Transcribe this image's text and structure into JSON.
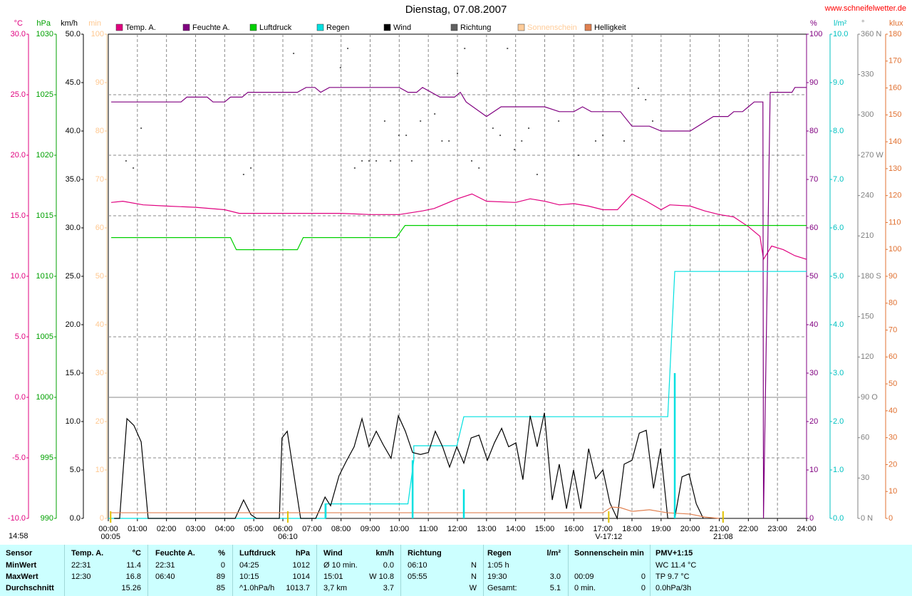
{
  "chart_data": {
    "type": "line",
    "title": "Dienstag, 07.08.2007",
    "source": "www.schneifelwetter.de",
    "xlim": [
      0,
      24
    ],
    "xticks": [
      {
        "value": 0,
        "label": "00:00"
      },
      {
        "value": 1,
        "label": "01:00"
      },
      {
        "value": 2,
        "label": "02:00"
      },
      {
        "value": 3,
        "label": "03:00"
      },
      {
        "value": 4,
        "label": "04:00"
      },
      {
        "value": 5,
        "label": "05:00"
      },
      {
        "value": 6,
        "label": "06:00"
      },
      {
        "value": 7,
        "label": "07:00"
      },
      {
        "value": 8,
        "label": "08:00"
      },
      {
        "value": 9,
        "label": "09:00"
      },
      {
        "value": 10,
        "label": "10:00"
      },
      {
        "value": 11,
        "label": "11:00"
      },
      {
        "value": 12,
        "label": "12:00"
      },
      {
        "value": 13,
        "label": "13:00"
      },
      {
        "value": 14,
        "label": "14:00"
      },
      {
        "value": 15,
        "label": "15:00"
      },
      {
        "value": 16,
        "label": "16:00"
      },
      {
        "value": 17,
        "label": "17:00"
      },
      {
        "value": 18,
        "label": "18:00"
      },
      {
        "value": 19,
        "label": "19:00"
      },
      {
        "value": 20,
        "label": "20:00"
      },
      {
        "value": 21,
        "label": "21:00"
      },
      {
        "value": 22,
        "label": "22:00"
      },
      {
        "value": 23,
        "label": "23:00"
      },
      {
        "value": 24,
        "label": "24:00"
      }
    ],
    "grid": true,
    "axes": [
      {
        "label": "°C",
        "side": "left",
        "color": "#e0007f",
        "lim": [
          -10,
          30
        ],
        "ticks": [
          {
            "value": -10,
            "label": "-10.0"
          },
          {
            "value": -5,
            "label": "-5.0"
          },
          {
            "value": 0,
            "label": "0.0"
          },
          {
            "value": 5,
            "label": "5.0"
          },
          {
            "value": 10,
            "label": "10.0"
          },
          {
            "value": 15,
            "label": "15.0"
          },
          {
            "value": 20,
            "label": "20.0"
          },
          {
            "value": 25,
            "label": "25.0"
          },
          {
            "value": 30,
            "label": "30.0"
          }
        ]
      },
      {
        "label": "hPa",
        "side": "left",
        "color": "#00a000",
        "lim": [
          990,
          1030
        ],
        "ticks": [
          990,
          995,
          1000,
          1005,
          1010,
          1015,
          1020,
          1025,
          1030
        ]
      },
      {
        "label": "km/h",
        "side": "left",
        "color": "#000000",
        "lim": [
          0,
          50
        ],
        "ticks": [
          {
            "value": 0,
            "label": "0.0"
          },
          {
            "value": 5,
            "label": "5.0"
          },
          {
            "value": 10,
            "label": "10.0"
          },
          {
            "value": 15,
            "label": "15.0"
          },
          {
            "value": 20,
            "label": "20.0"
          },
          {
            "value": 25,
            "label": "25.0"
          },
          {
            "value": 30,
            "label": "30.0"
          },
          {
            "value": 35,
            "label": "35.0"
          },
          {
            "value": 40,
            "label": "40.0"
          },
          {
            "value": 45,
            "label": "45.0"
          },
          {
            "value": 50,
            "label": "50.0"
          }
        ]
      },
      {
        "label": "min",
        "side": "left",
        "color": "#ffc890",
        "lim": [
          0,
          100
        ],
        "ticks": [
          0,
          10,
          20,
          30,
          40,
          50,
          60,
          70,
          80,
          90,
          100
        ]
      },
      {
        "label": "%",
        "side": "right",
        "color": "#800080",
        "lim": [
          0,
          100
        ],
        "ticks": [
          0,
          10,
          20,
          30,
          40,
          50,
          60,
          70,
          80,
          90,
          100
        ]
      },
      {
        "label": "l/m²",
        "side": "right",
        "color": "#00c0c0",
        "lim": [
          0,
          10
        ],
        "ticks": [
          {
            "value": 0,
            "label": "0.0"
          },
          {
            "value": 1,
            "label": "1.0"
          },
          {
            "value": 2,
            "label": "2.0"
          },
          {
            "value": 3,
            "label": "3.0"
          },
          {
            "value": 4,
            "label": "4.0"
          },
          {
            "value": 5,
            "label": "5.0"
          },
          {
            "value": 6,
            "label": "6.0"
          },
          {
            "value": 7,
            "label": "7.0"
          },
          {
            "value": 8,
            "label": "8.0"
          },
          {
            "value": 9,
            "label": "9.0"
          },
          {
            "value": 10,
            "label": "10.0"
          }
        ]
      },
      {
        "label": "°",
        "side": "right",
        "color": "#808080",
        "lim": [
          0,
          360
        ],
        "grid": [
          45,
          90,
          135,
          225,
          270,
          315
        ],
        "ticks": [
          {
            "value": 0,
            "label": "0   N"
          },
          30,
          60,
          {
            "value": 90,
            "label": "90  O"
          },
          120,
          150,
          {
            "value": 180,
            "label": "180 S"
          },
          210,
          240,
          {
            "value": 270,
            "label": "270 W"
          },
          300,
          330,
          {
            "value": 360,
            "label": "360 N"
          }
        ]
      },
      {
        "label": "klux",
        "side": "right",
        "color": "#e07030",
        "lim": [
          0,
          180
        ],
        "ticks": [
          0,
          10,
          20,
          30,
          40,
          50,
          60,
          70,
          80,
          90,
          100,
          110,
          120,
          130,
          140,
          150,
          160,
          170,
          180
        ]
      }
    ],
    "series": [
      {
        "name": "Temp. A.",
        "color": "#e0007f",
        "axis": 0,
        "type": "line",
        "x": [
          0.1,
          0.5,
          1.2,
          2.0,
          3.0,
          4.0,
          4.5,
          6.0,
          7.0,
          8.0,
          9.0,
          10.0,
          10.8,
          11.2,
          12.0,
          12.5,
          13.0,
          14.0,
          14.5,
          15.0,
          15.5,
          16.0,
          16.5,
          17.0,
          17.5,
          18.0,
          18.5,
          19.0,
          19.3,
          20.0,
          20.5,
          21.0,
          21.5,
          22.0,
          22.4,
          22.52,
          22.8,
          23.2,
          23.6,
          24.0
        ],
        "values": [
          16.1,
          16.2,
          15.9,
          15.8,
          15.7,
          15.5,
          15.2,
          15.2,
          15.2,
          15.2,
          15.1,
          15.1,
          15.4,
          15.6,
          16.4,
          16.8,
          16.2,
          16.1,
          16.4,
          16.2,
          15.9,
          16.0,
          15.8,
          15.5,
          15.5,
          16.8,
          16.2,
          15.5,
          15.9,
          15.8,
          15.4,
          15.1,
          14.9,
          14.1,
          13.3,
          11.4,
          12.5,
          12.2,
          11.7,
          11.4
        ]
      },
      {
        "name": "Feuchte A.",
        "color": "#800080",
        "axis": 4,
        "type": "line",
        "x": [
          0.1,
          2.5,
          2.7,
          3.4,
          3.6,
          4.0,
          4.2,
          4.6,
          4.8,
          6.5,
          6.8,
          7.1,
          7.3,
          7.6,
          10.0,
          10.3,
          10.6,
          10.8,
          11.4,
          11.9,
          12.1,
          12.3,
          13.0,
          13.5,
          15.0,
          15.5,
          16.0,
          16.3,
          16.6,
          17.6,
          18.0,
          18.6,
          19.0,
          20.0,
          20.8,
          21.3,
          21.5,
          21.8,
          22.0,
          22.2,
          22.5,
          22.52,
          22.75,
          23.5,
          23.6,
          24.0
        ],
        "values": [
          86,
          86,
          87,
          87,
          86,
          86,
          87,
          87,
          88,
          88,
          89,
          89,
          88,
          89,
          89,
          88,
          88,
          89,
          87,
          87,
          88,
          86,
          83,
          85,
          85,
          84,
          84,
          85,
          84,
          84,
          81,
          81,
          80,
          80,
          83,
          83,
          84,
          84,
          85,
          86,
          86,
          0,
          88,
          88,
          89,
          89
        ]
      },
      {
        "name": "Luftdruck",
        "color": "#00d000",
        "axis": 1,
        "type": "line",
        "x": [
          0.1,
          4.2,
          4.4,
          6.5,
          6.7,
          9.9,
          10.2,
          24
        ],
        "values": [
          1013.2,
          1013.2,
          1012.2,
          1012.2,
          1013.2,
          1013.2,
          1014.2,
          1014.2
        ]
      },
      {
        "name": "Regen",
        "color": "#00e0e0",
        "axis": 5,
        "type": "line",
        "x": [
          0,
          7.45,
          7.45,
          10.3,
          10.5,
          10.5,
          11.98,
          12.22,
          19.23,
          19.47,
          24
        ],
        "values": [
          0,
          0,
          0.3,
          0.3,
          1.2,
          1.5,
          1.5,
          2.1,
          2.1,
          5.1,
          5.1
        ]
      },
      {
        "name": "Wind",
        "color": "#000000",
        "axis": 2,
        "type": "line",
        "x": [
          0.2,
          0.39,
          0.64,
          0.88,
          1.13,
          1.37,
          4.36,
          4.65,
          4.9,
          5.09,
          5.88,
          5.97,
          6.15,
          6.39,
          6.61,
          7.13,
          7.45,
          7.64,
          7.93,
          8.18,
          8.45,
          8.72,
          8.96,
          9.21,
          9.45,
          9.72,
          9.97,
          10.21,
          10.46,
          10.73,
          11.0,
          11.24,
          11.49,
          11.73,
          11.98,
          12.22,
          12.47,
          12.74,
          13.03,
          13.27,
          13.52,
          13.76,
          14.01,
          14.25,
          14.5,
          14.74,
          14.99,
          15.26,
          15.5,
          15.75,
          15.99,
          16.24,
          16.51,
          16.75,
          17.0,
          17.24,
          17.49,
          17.73,
          18.0,
          18.25,
          18.49,
          18.74,
          18.98,
          19.23,
          19.47,
          19.72,
          19.96,
          20.21,
          20.45
        ],
        "values": [
          0,
          0,
          10.3,
          9.6,
          7.9,
          0,
          0,
          1.9,
          0.4,
          0,
          0,
          8.3,
          9.0,
          4.3,
          0,
          0,
          2.2,
          1.3,
          4.4,
          5.9,
          7.4,
          10.3,
          7.4,
          9.0,
          7.6,
          6.2,
          10.6,
          9.0,
          6.8,
          6.6,
          6.8,
          9.0,
          7.4,
          5.3,
          7.4,
          5.7,
          8.3,
          8.6,
          6.0,
          7.8,
          9.3,
          7.4,
          7.8,
          4.0,
          10.6,
          7.4,
          10.9,
          1.9,
          5.6,
          1.0,
          5.0,
          1.0,
          7.2,
          4.1,
          5.0,
          1.6,
          0,
          5.6,
          6.0,
          8.8,
          9.1,
          3.1,
          7.2,
          0,
          0,
          4.3,
          4.6,
          1.5,
          0
        ]
      },
      {
        "name": "Richtung",
        "color": "#606060",
        "axis": 6,
        "type": "scatter",
        "x": [
          0.61,
          0.86,
          1.13,
          4.65,
          4.9,
          6.37,
          7.98,
          8.23,
          8.47,
          8.72,
          8.96,
          9.21,
          9.5,
          9.7,
          9.99,
          10.24,
          10.43,
          10.73,
          11.22,
          11.47,
          11.71,
          12.0,
          12.25,
          12.49,
          12.74,
          13.22,
          13.47,
          13.72,
          13.96,
          14.21,
          14.45,
          14.74,
          15.48,
          16.16,
          16.75,
          17.0,
          17.73,
          18.22,
          18.47,
          18.71
        ],
        "values": [
          265.8,
          260.5,
          290.1,
          255.7,
          260.5,
          345.7,
          335.1,
          349.4,
          260.5,
          265.8,
          265.8,
          265.8,
          295.4,
          265.8,
          284.8,
          284.8,
          265.8,
          295.4,
          300.7,
          280.6,
          280.6,
          330.9,
          349.4,
          265.8,
          260.5,
          290.1,
          284.8,
          349.4,
          274.2,
          280.6,
          290.1,
          255.7,
          295.4,
          270.0,
          280.6,
          284.8,
          280.6,
          319.8,
          311.3,
          295.4
        ]
      },
      {
        "name": "Sonnenschein",
        "color": "#ffcc99",
        "axis": 3,
        "type": "line",
        "x": [],
        "values": []
      },
      {
        "name": "Helligkeit",
        "color": "#e08050",
        "axis": 7,
        "type": "line",
        "x": [
          0.1,
          17.0,
          17.3,
          17.6,
          18.0,
          18.6,
          19.2,
          20.0,
          20.5,
          21.0
        ],
        "values": [
          2.1,
          2.1,
          4.2,
          4.0,
          2.6,
          3.2,
          2.1,
          1.6,
          0.5,
          0
        ]
      },
      {
        "color": "#00e0e0",
        "axis": 5,
        "type": "bar",
        "x": [
          7.47,
          10.46,
          12.22,
          19.47
        ],
        "values": [
          0.3,
          1.2,
          0.6,
          3.0
        ]
      }
    ],
    "left_note": "14:58",
    "annotations": [
      {
        "label": "00:05",
        "x": 0.08
      },
      {
        "label": "06:10",
        "x": 6.17
      },
      {
        "label": "V-17:12",
        "x": 17.2
      },
      {
        "label": "21:08",
        "x": 21.13
      }
    ]
  },
  "table": {
    "header": [
      "Sensor",
      "Temp. A.",
      "°C",
      "Feuchte A.",
      "%",
      "Luftdruck",
      "hPa",
      "Wind",
      "km/h",
      "Richtung",
      null,
      "Regen",
      "l/m²",
      "Sonnenschein min",
      null,
      "PMV+1:15"
    ],
    "rows": [
      [
        "MinWert",
        "22:31",
        "11.4",
        "22:31",
        "0",
        "04:25",
        "1012",
        "Ø 10 min.",
        "0.0",
        "06:10",
        "N",
        "1:05 h",
        null,
        null,
        null,
        "WC 11.4 °C"
      ],
      [
        "MaxWert",
        "12:30",
        "16.8",
        "06:40",
        "89",
        "10:15",
        "1014",
        "15:01",
        "W 10.8",
        "05:55",
        "N",
        "19:30",
        "3.0",
        "00:09",
        "0",
        "TP 9.7 °C"
      ],
      [
        "Durchschnitt",
        null,
        "15.26",
        null,
        "85",
        "^1.0hPa/h",
        "1013.7",
        "3,7 km",
        "3.7",
        null,
        "W",
        "Gesamt:",
        "5.1",
        "0 min.",
        "0",
        "0.0hPa/3h"
      ]
    ]
  }
}
